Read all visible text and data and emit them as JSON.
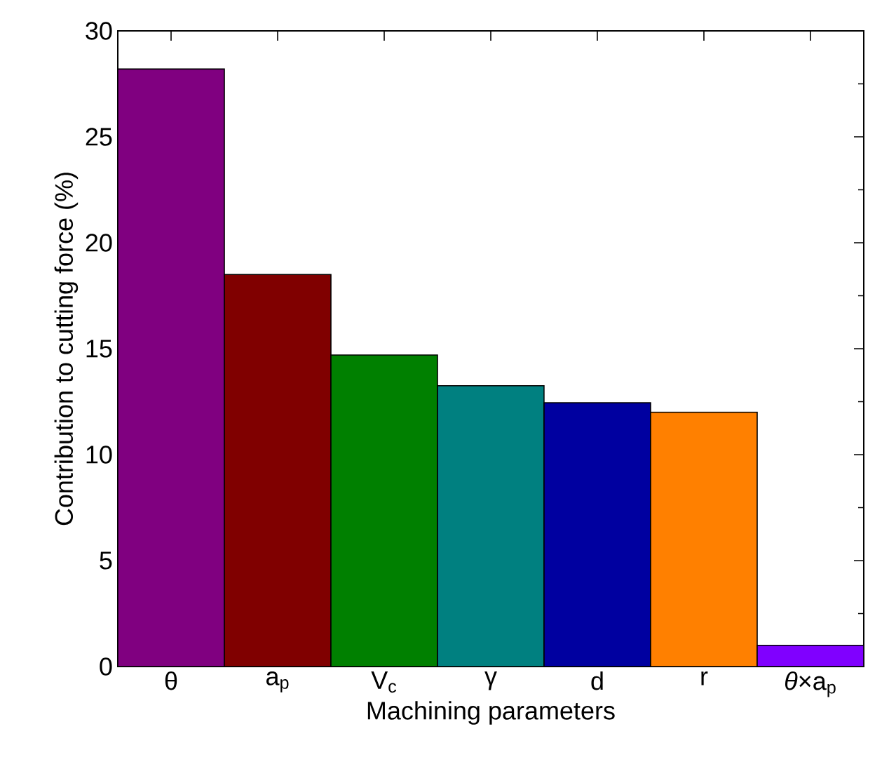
{
  "chart_data": {
    "type": "bar",
    "xlabel": "Machining parameters",
    "ylabel": "Contribution to cutting force (%)",
    "categories": [
      "θ",
      "a$_{p}$",
      "V$_{c}$",
      "γ",
      "d",
      "r",
      "*θ*×a$_{p}$"
    ],
    "values": [
      28.2,
      18.5,
      14.7,
      13.25,
      12.45,
      12.0,
      1.0
    ],
    "colors": [
      "#800080",
      "#800000",
      "#008000",
      "#008080",
      "#0000a0",
      "#ff8000",
      "#8000ff"
    ],
    "ylim": [
      0,
      30
    ],
    "yticks": [
      0,
      5,
      10,
      15,
      20,
      25,
      30
    ]
  }
}
